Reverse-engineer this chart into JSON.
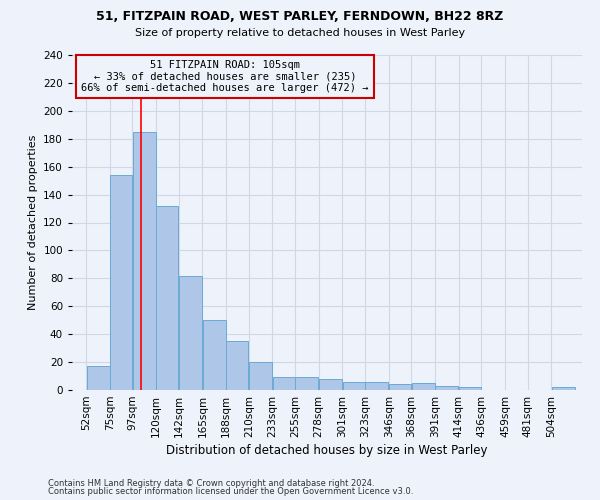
{
  "title1": "51, FITZPAIN ROAD, WEST PARLEY, FERNDOWN, BH22 8RZ",
  "title2": "Size of property relative to detached houses in West Parley",
  "xlabel": "Distribution of detached houses by size in West Parley",
  "ylabel": "Number of detached properties",
  "footnote1": "Contains HM Land Registry data © Crown copyright and database right 2024.",
  "footnote2": "Contains public sector information licensed under the Open Government Licence v3.0.",
  "xlabels": [
    "52sqm",
    "75sqm",
    "97sqm",
    "120sqm",
    "142sqm",
    "165sqm",
    "188sqm",
    "210sqm",
    "233sqm",
    "255sqm",
    "278sqm",
    "301sqm",
    "323sqm",
    "346sqm",
    "368sqm",
    "391sqm",
    "414sqm",
    "436sqm",
    "459sqm",
    "481sqm",
    "504sqm"
  ],
  "heights": [
    17,
    154,
    185,
    132,
    82,
    50,
    35,
    20,
    9,
    9,
    8,
    6,
    6,
    4,
    5,
    3,
    2,
    0,
    0,
    0,
    2
  ],
  "bar_color": "#aec6e8",
  "bar_edge_color": "#6aaad4",
  "grid_color": "#d0d8e8",
  "annotation_box_color": "#cc0000",
  "annotation_text_line1": "51 FITZPAIN ROAD: 105sqm",
  "annotation_text_line2": "← 33% of detached houses are smaller (235)",
  "annotation_text_line3": "66% of semi-detached houses are larger (472) →",
  "red_line_x": 105,
  "ylim": [
    0,
    240
  ],
  "yticks": [
    0,
    20,
    40,
    60,
    80,
    100,
    120,
    140,
    160,
    180,
    200,
    220,
    240
  ],
  "background_color": "#eef2fa",
  "title1_fontsize": 9.0,
  "title2_fontsize": 8.0,
  "ylabel_fontsize": 8.0,
  "xlabel_fontsize": 8.5,
  "tick_fontsize": 7.5,
  "footnote_fontsize": 6.0
}
